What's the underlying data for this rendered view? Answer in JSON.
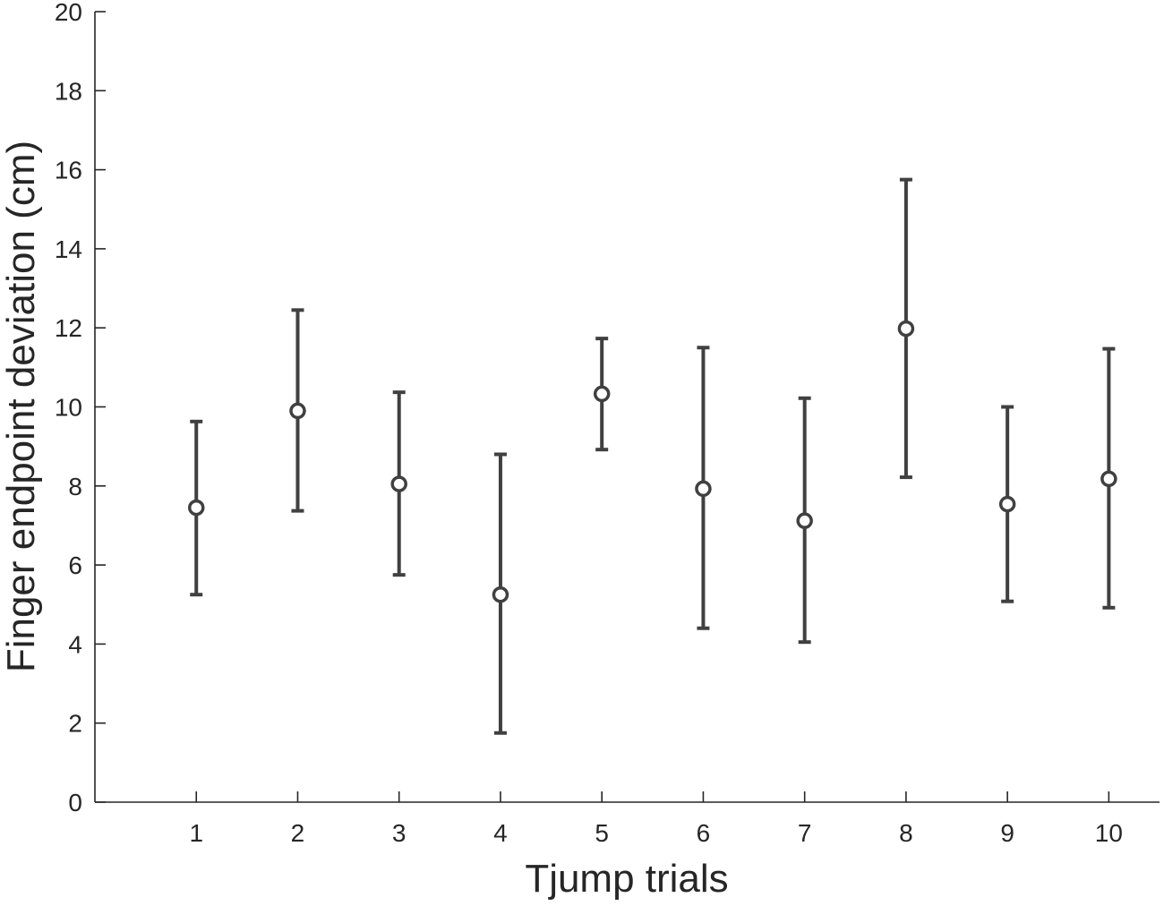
{
  "chart_data": {
    "type": "scatter",
    "style": "errorbar",
    "xlabel": "Tjump trials",
    "ylabel": "Finger endpoint deviation (cm)",
    "xlim": [
      0,
      10.5
    ],
    "ylim": [
      0,
      20
    ],
    "x_ticks": [
      1,
      2,
      3,
      4,
      5,
      6,
      7,
      8,
      9,
      10
    ],
    "y_ticks": [
      0,
      2,
      4,
      6,
      8,
      10,
      12,
      14,
      16,
      18,
      20
    ],
    "grid": false,
    "series": [
      {
        "x": [
          1,
          2,
          3,
          4,
          5,
          6,
          7,
          8,
          9,
          10
        ],
        "y": [
          7.45,
          9.9,
          8.05,
          5.25,
          10.33,
          7.93,
          7.12,
          11.98,
          7.54,
          8.18
        ],
        "lower": [
          5.25,
          7.37,
          5.75,
          1.75,
          8.92,
          4.4,
          4.05,
          8.22,
          5.08,
          4.92
        ],
        "upper": [
          9.63,
          12.45,
          10.37,
          8.8,
          11.73,
          11.5,
          10.22,
          15.75,
          10.0,
          11.47
        ]
      }
    ],
    "colors": {
      "axis": "#262626",
      "marker": "#404040"
    }
  }
}
